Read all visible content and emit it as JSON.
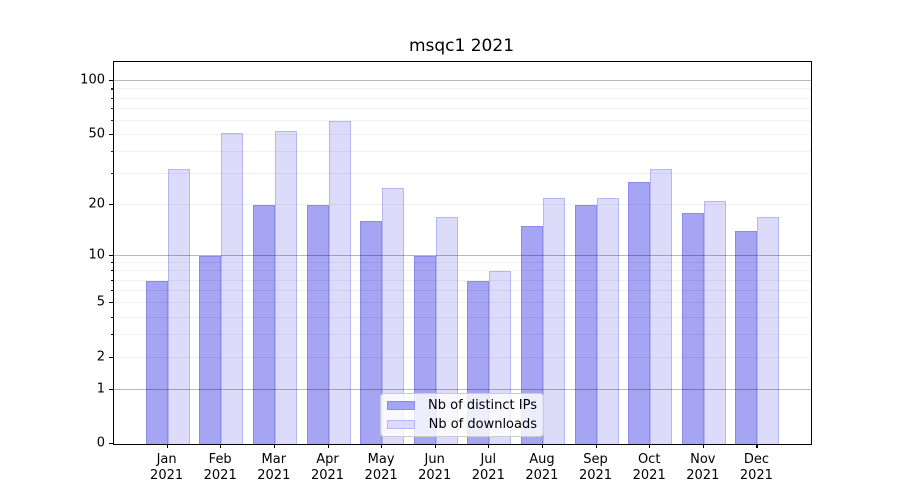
{
  "title": "msqc1 2021",
  "chart_data": {
    "type": "bar",
    "title": "msqc1 2021",
    "scale": "log1p",
    "categories": [
      "Jan 2021",
      "Feb 2021",
      "Mar 2021",
      "Apr 2021",
      "May 2021",
      "Jun 2021",
      "Jul 2021",
      "Aug 2021",
      "Sep 2021",
      "Oct 2021",
      "Nov 2021",
      "Dec 2021"
    ],
    "series": [
      {
        "name": "Nb of distinct IPs",
        "color": "#a5a5f3",
        "edge_color": "#8a8ae8",
        "values": [
          7,
          10,
          20,
          20,
          16,
          10,
          7,
          15,
          20,
          27,
          18,
          14
        ]
      },
      {
        "name": "Nb of downloads",
        "color": "#dcdcfa",
        "edge_color": "#b6b6f2",
        "values": [
          32,
          51,
          53,
          60,
          25,
          17,
          8,
          22,
          22,
          32,
          21,
          17
        ]
      }
    ],
    "ylim": [
      0,
      128
    ],
    "y_tick_values": [
      0,
      1,
      2,
      5,
      10,
      20,
      50,
      100
    ],
    "y_major_gridlines": [
      1,
      10,
      100
    ],
    "y_minor_gridlines": [
      2,
      3,
      4,
      5,
      6,
      7,
      8,
      9,
      20,
      30,
      40,
      50,
      60,
      70,
      80,
      90
    ],
    "grid": "on",
    "legend_position": "lower center"
  }
}
